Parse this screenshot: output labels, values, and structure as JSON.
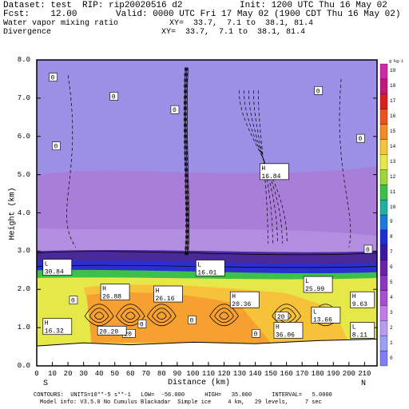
{
  "header": {
    "dataset": "Dataset: test  RIP: rip20020516 d2",
    "init": "Init: 1200 UTC Thu 16 May 02",
    "fcst": "Fcst:    12.00",
    "valid": "Valid: 0000 UTC Fri 17 May 02 (1900 CDT Thu 16 May 02)",
    "field1": "Water vapor mixing ratio",
    "xy1": "XY=  33.7,  7.1 to  38.1, 81.4",
    "field2": "Divergence",
    "xy2": "XY=  33.7,  7.1 to  38.1, 81.4"
  },
  "footer": {
    "line1": "CONTOURS:  UNITS=10**-5 s**-1   LOW=  -56.000      HIGH=   35.000      INTERVAL=   5.0000",
    "line2": "Model info: V3.5.0 No Cumulus Blackadar  Simple ice     4 km,   29 levels,     7 sec"
  },
  "colors": {
    "upper": "#9b8fe6",
    "mid": "#a97ed8",
    "band_blue": "#2b2fcf",
    "band_dark": "#4a2a98",
    "low_yellow": "#e6e84a",
    "low_orange": "#f5a030",
    "ground": "#ffffff"
  },
  "chart_data": {
    "type": "heatmap",
    "title": "",
    "xlabel": "Distance (km)",
    "ylabel": "Height (km)",
    "xlim": [
      0,
      218
    ],
    "ylim": [
      0,
      8
    ],
    "x_ticks": [
      "0",
      "10",
      "20",
      "30",
      "40",
      "50",
      "60",
      "70",
      "80",
      "90",
      "100",
      "110",
      "120",
      "130",
      "140",
      "150",
      "160",
      "170",
      "180",
      "190",
      "200",
      "210"
    ],
    "y_ticks": [
      "0.0",
      "1.0",
      "2.0",
      "3.0",
      "4.0",
      "5.0",
      "6.0",
      "7.0",
      "8.0"
    ],
    "x_end_labels": {
      "left": "S",
      "right": "N"
    },
    "colorbar": {
      "unit": "g kg-1",
      "labels": [
        "0",
        "1",
        "2",
        "3",
        "4",
        "5",
        "6",
        "7",
        "8",
        "9",
        "10",
        "11",
        "12",
        "13",
        "14",
        "15",
        "16",
        "17",
        "18",
        "19"
      ],
      "colors": [
        "#7f7ff2",
        "#9aa0f5",
        "#b89bf2",
        "#c27ae8",
        "#a84fd0",
        "#8c37c0",
        "#6a23a6",
        "#3b18a0",
        "#2030d0",
        "#1e78d8",
        "#20b0a0",
        "#3cc04a",
        "#9ed63a",
        "#e6e84a",
        "#f5c23a",
        "#f28a26",
        "#e85420",
        "#d8201e",
        "#c01a7a",
        "#d02aa8"
      ]
    },
    "extrema_labels": [
      {
        "kind": "L",
        "value": "30.84",
        "x": 5,
        "y": 2.6
      },
      {
        "kind": "H",
        "value": "26.88",
        "x": 42,
        "y": 1.95
      },
      {
        "kind": "H",
        "value": "26.16",
        "x": 76,
        "y": 1.9
      },
      {
        "kind": "L",
        "value": "16.01",
        "x": 103,
        "y": 2.58
      },
      {
        "kind": "H",
        "value": "20.36",
        "x": 125,
        "y": 1.75
      },
      {
        "kind": "H",
        "value": "16.84",
        "x": 144,
        "y": 5.1
      },
      {
        "kind": "L",
        "value": "25.99",
        "x": 172,
        "y": 2.15
      },
      {
        "kind": "H",
        "value": "9.63",
        "x": 202,
        "y": 1.75
      },
      {
        "kind": "H",
        "value": "16.32",
        "x": 5,
        "y": 1.05
      },
      {
        "kind": "L",
        "value": "13.66",
        "x": 177,
        "y": 1.35
      },
      {
        "kind": "H",
        "value": "36.06",
        "x": 153,
        "y": 0.95
      },
      {
        "kind": "L",
        "value": "8.11",
        "x": 202,
        "y": 0.95
      },
      {
        "kind": "",
        "value": "20.20",
        "x": 40,
        "y": 0.85
      }
    ],
    "contour_zero_labels": [
      {
        "value": "0",
        "x": 10,
        "y": 7.55
      },
      {
        "value": "0",
        "x": 49,
        "y": 7.05
      },
      {
        "value": "0",
        "x": 12,
        "y": 5.75
      },
      {
        "value": "0",
        "x": 88,
        "y": 6.7
      },
      {
        "value": "0",
        "x": 180,
        "y": 7.2
      },
      {
        "value": "0",
        "x": 207,
        "y": 5.95
      },
      {
        "value": "0",
        "x": 227,
        "y": 3.05
      },
      {
        "value": "0",
        "x": 23,
        "y": 1.72
      },
      {
        "value": "0",
        "x": 67,
        "y": 1.1
      },
      {
        "value": "0",
        "x": 99,
        "y": 1.2
      },
      {
        "value": "0",
        "x": 140,
        "y": 0.85
      },
      {
        "value": "20",
        "x": 155,
        "y": 1.3
      },
      {
        "value": "20",
        "x": 57,
        "y": 0.85
      }
    ]
  }
}
